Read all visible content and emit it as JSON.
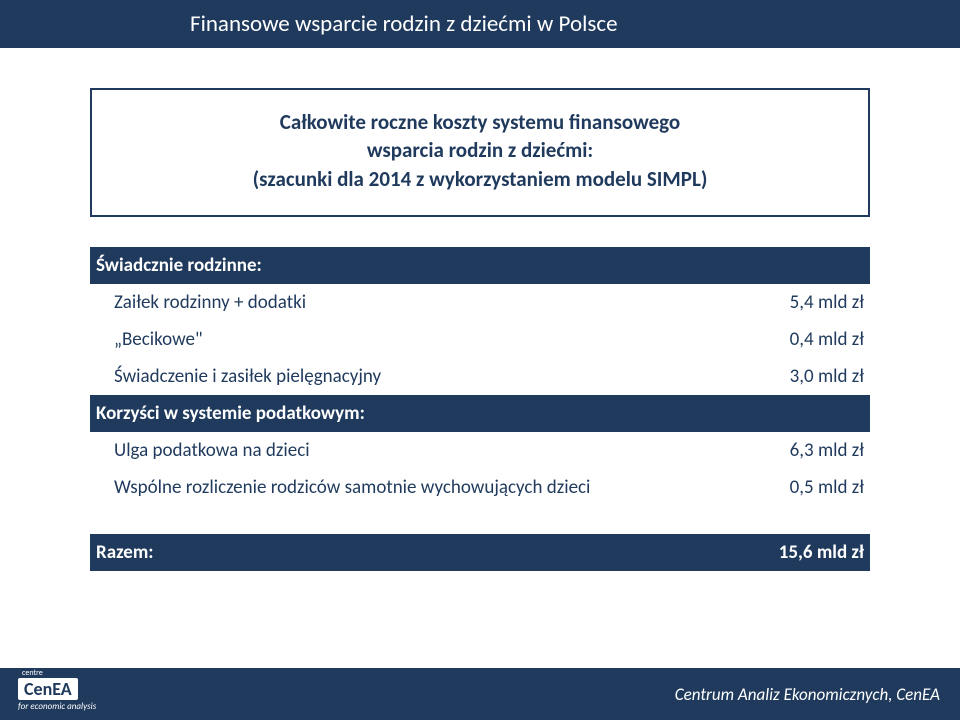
{
  "header": {
    "title": "Finansowe wsparcie rodzin z dziećmi w Polsce"
  },
  "box": {
    "line1": "Całkowite roczne koszty systemu finansowego",
    "line2": "wsparcia rodzin z dziećmi:",
    "line3": "(szacunki dla 2014 z wykorzystaniem modelu SIMPL)"
  },
  "sections": {
    "swiadczenia": {
      "label": "Świadcznie rodzinne:",
      "rows": [
        {
          "label": "Zaiłek rodzinny + dodatki",
          "value": "5,4 mld zł"
        },
        {
          "label": "„Becikowe\"",
          "value": "0,4 mld zł"
        },
        {
          "label": "Świadczenie i zasiłek pielęgnacyjny",
          "value": "3,0 mld zł"
        }
      ]
    },
    "korzysci": {
      "label": "Korzyści w systemie podatkowym:",
      "rows": [
        {
          "label": "Ulga podatkowa na dzieci",
          "value": "6,3 mld zł"
        },
        {
          "label": "Wspólne  rozliczenie rodziców samotnie wychowujących dzieci",
          "value": "0,5 mld zł"
        }
      ]
    },
    "total": {
      "label": "Razem:",
      "value": "15,6 mld zł"
    }
  },
  "footer": {
    "logo_centre": "centre",
    "logo_main": "CenEA",
    "logo_sub": "for economic analysis",
    "text": "Centrum Analiz Ekonomicznych, CenEA"
  },
  "colors": {
    "primary": "#1f3a5c",
    "white": "#ffffff"
  }
}
